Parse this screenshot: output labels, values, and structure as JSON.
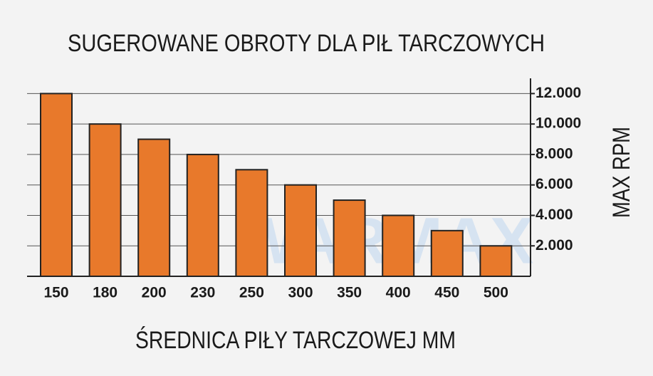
{
  "chart_data": {
    "type": "bar",
    "title": "SUGEROWANE OBROTY DLA PIŁ TARCZOWYCH",
    "x_label": "ŚREDNICA PIŁY TARCZOWEJ MM",
    "y_label": "MAX RPM",
    "watermark": "WARMAX",
    "categories": [
      "150",
      "180",
      "200",
      "230",
      "250",
      "300",
      "350",
      "400",
      "450",
      "500"
    ],
    "values": [
      12000,
      10000,
      9000,
      8000,
      7000,
      6000,
      5000,
      4000,
      3000,
      2000
    ],
    "color": "#e8792b",
    "ylim": [
      0,
      13000
    ],
    "yticks": [
      {
        "value": 2000,
        "label": "2.000"
      },
      {
        "value": 4000,
        "label": "4.000"
      },
      {
        "value": 6000,
        "label": "6.000"
      },
      {
        "value": 8000,
        "label": "8.000"
      },
      {
        "value": 10000,
        "label": "10.000"
      },
      {
        "value": 12000,
        "label": "12.000"
      }
    ],
    "grid": true
  }
}
